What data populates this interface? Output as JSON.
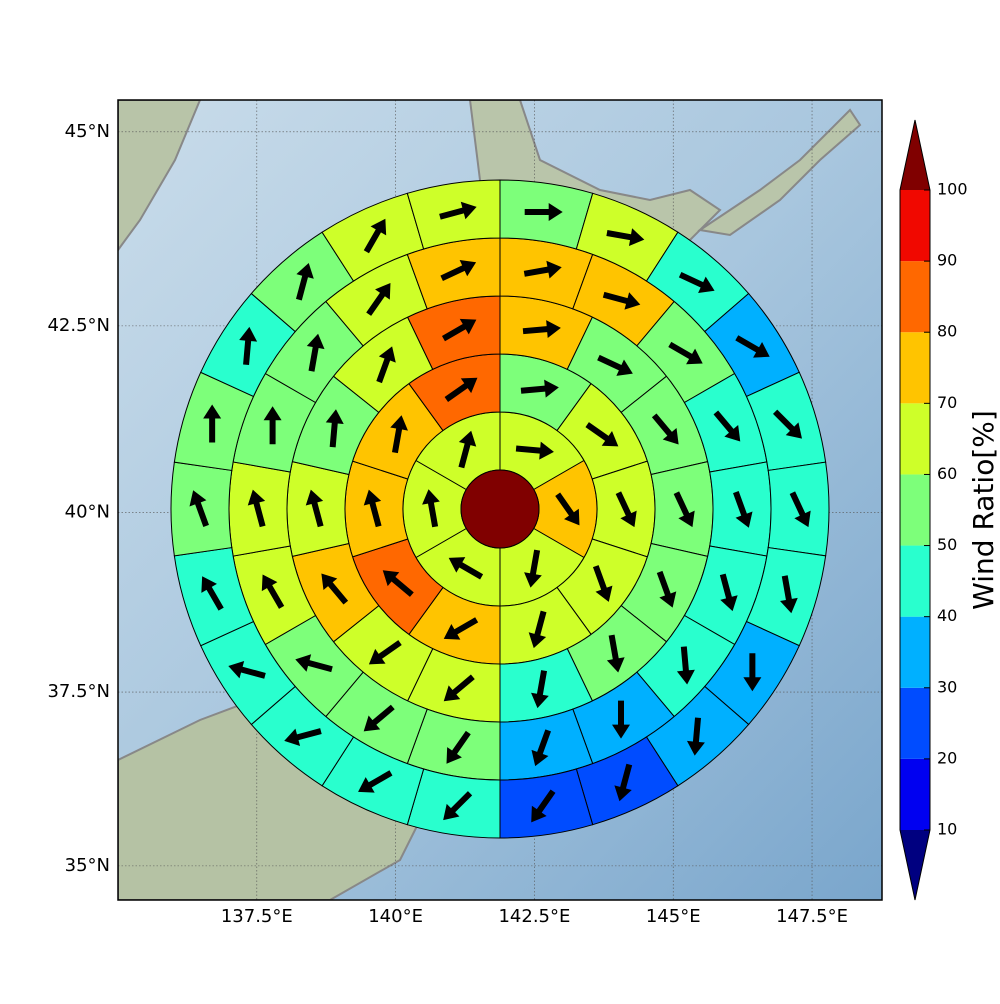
{
  "chart_data": {
    "type": "polar_sectors",
    "xticks": [
      {
        "value": 137.5,
        "label": "137.5°E"
      },
      {
        "value": 140,
        "label": "140°E"
      },
      {
        "value": 142.5,
        "label": "142.5°E"
      },
      {
        "value": 145,
        "label": "145°E"
      },
      {
        "value": 147.5,
        "label": "147.5°E"
      }
    ],
    "yticks": [
      {
        "value": 35,
        "label": "35°N"
      },
      {
        "value": 37.5,
        "label": "37.5°N"
      },
      {
        "value": 40,
        "label": "40°N"
      },
      {
        "value": 42.5,
        "label": "42.5°N"
      },
      {
        "value": 45,
        "label": "45°N"
      }
    ],
    "xlim": [
      135.0,
      148.76
    ],
    "ylim": [
      34.5,
      45.4
    ],
    "grid": true,
    "center_value": 105,
    "rings": [
      {
        "values": [
          65,
          75,
          65,
          65,
          65,
          65
        ],
        "directions": [
          95,
          145,
          190,
          300,
          350,
          15
        ]
      },
      {
        "values": [
          55,
          65,
          65,
          65,
          65,
          75,
          85,
          75,
          75,
          85
        ],
        "directions": [
          85,
          125,
          155,
          160,
          195,
          240,
          310,
          345,
          10,
          55
        ]
      },
      {
        "values": [
          75,
          55,
          55,
          55,
          55,
          55,
          45,
          65,
          65,
          75,
          65,
          55,
          65,
          85
        ],
        "directions": [
          85,
          115,
          140,
          155,
          160,
          170,
          190,
          230,
          235,
          320,
          345,
          5,
          20,
          60
        ]
      },
      {
        "values": [
          75,
          75,
          55,
          45,
          45,
          45,
          45,
          35,
          35,
          55,
          55,
          55,
          65,
          65,
          55,
          55,
          65,
          75
        ],
        "directions": [
          80,
          105,
          120,
          140,
          160,
          165,
          175,
          180,
          200,
          215,
          230,
          285,
          330,
          345,
          0,
          10,
          35,
          65
        ]
      },
      {
        "values": [
          55,
          65,
          45,
          35,
          45,
          45,
          45,
          35,
          35,
          25,
          25,
          45,
          45,
          45,
          45,
          45,
          55,
          55,
          45,
          55,
          65,
          65
        ],
        "directions": [
          90,
          100,
          115,
          120,
          135,
          155,
          170,
          180,
          185,
          195,
          215,
          225,
          240,
          255,
          285,
          330,
          340,
          360,
          5,
          15,
          30,
          75
        ]
      }
    ],
    "colorbar": {
      "label": "Wind Ratio[%]",
      "bounds": [
        10,
        20,
        30,
        40,
        50,
        60,
        70,
        80,
        90,
        100
      ],
      "colors": [
        "#000080",
        "#0000f1",
        "#004cff",
        "#00b0ff",
        "#29ffce",
        "#7dff7a",
        "#ceff29",
        "#ffc400",
        "#ff6800",
        "#f10800",
        "#800000"
      ],
      "ticks": [
        10,
        20,
        30,
        40,
        50,
        60,
        70,
        80,
        90,
        100
      ]
    }
  }
}
